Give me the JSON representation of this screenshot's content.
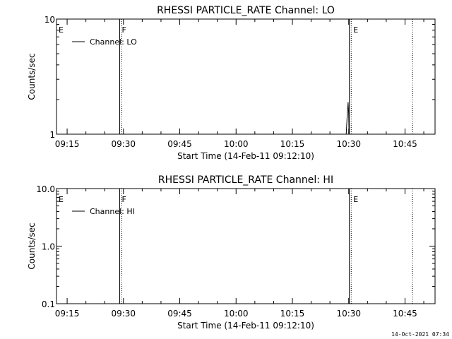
{
  "footer_timestamp": "14-Oct-2021 07:34",
  "colors": {
    "background": "#ffffff",
    "ink": "#000000"
  },
  "chart_data": [
    {
      "type": "line",
      "title": "RHESSI PARTICLE_RATE Channel: LO",
      "xlabel": "Start Time (14-Feb-11 09:12:10)",
      "ylabel": "Counts/sec",
      "yscale": "log",
      "ylim": [
        1,
        10
      ],
      "ytick_labels": [
        "1",
        "10"
      ],
      "xlim": [
        "09:12:10",
        "10:53:00"
      ],
      "xtick_labels": [
        "09:15",
        "09:30",
        "09:45",
        "10:00",
        "10:15",
        "10:30",
        "10:45"
      ],
      "legend": {
        "placement": "top-left",
        "entries": [
          "Channel: LO"
        ]
      },
      "markers": [
        {
          "label": "E",
          "time": "09:12:10",
          "style": "solid"
        },
        {
          "label": "F",
          "time": "09:29:00",
          "style": "solid"
        },
        {
          "label": "",
          "time": "09:29:30",
          "style": "dotted"
        },
        {
          "label": "",
          "time": "10:30:10",
          "style": "solid"
        },
        {
          "label": "E",
          "time": "10:30:40",
          "style": "dotted"
        },
        {
          "label": "",
          "time": "10:47:00",
          "style": "dotted"
        }
      ],
      "series": [
        {
          "name": "Channel: LO",
          "x": [
            "10:29:20",
            "10:29:35",
            "10:29:50",
            "10:30:00",
            "10:30:05"
          ],
          "y": [
            1.0,
            1.4,
            1.9,
            1.5,
            1.0
          ]
        }
      ]
    },
    {
      "type": "line",
      "title": "RHESSI PARTICLE_RATE Channel: HI",
      "xlabel": "Start Time (14-Feb-11 09:12:10)",
      "ylabel": "Counts/sec",
      "yscale": "log",
      "ylim": [
        0.1,
        10
      ],
      "ytick_labels": [
        "0.1",
        "1.0",
        "10.0"
      ],
      "xlim": [
        "09:12:10",
        "10:53:00"
      ],
      "xtick_labels": [
        "09:15",
        "09:30",
        "09:45",
        "10:00",
        "10:15",
        "10:30",
        "10:45"
      ],
      "legend": {
        "placement": "top-left",
        "entries": [
          "Channel: HI"
        ]
      },
      "markers": [
        {
          "label": "E",
          "time": "09:12:10",
          "style": "solid"
        },
        {
          "label": "F",
          "time": "09:29:00",
          "style": "solid"
        },
        {
          "label": "",
          "time": "09:29:30",
          "style": "dotted"
        },
        {
          "label": "",
          "time": "10:30:10",
          "style": "solid"
        },
        {
          "label": "E",
          "time": "10:30:40",
          "style": "dotted"
        },
        {
          "label": "",
          "time": "10:47:00",
          "style": "dotted"
        }
      ],
      "series": [
        {
          "name": "Channel: HI",
          "x": [],
          "y": []
        }
      ]
    }
  ]
}
